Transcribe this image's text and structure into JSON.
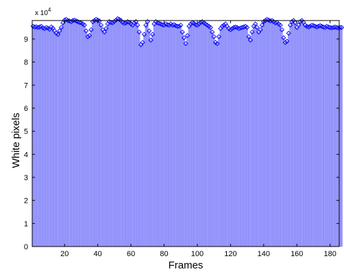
{
  "chart_data": {
    "type": "bar",
    "title": "",
    "xlabel": "Frames",
    "ylabel": "White pixels",
    "y_exponent_label": "x 10",
    "y_exponent_power": "4",
    "xlim": [
      1,
      185
    ],
    "ylim": [
      0,
      9.8
    ],
    "xticks": [
      20,
      40,
      60,
      80,
      100,
      120,
      140,
      160,
      180
    ],
    "yticks": [
      0,
      1,
      2,
      3,
      4,
      5,
      6,
      7,
      8,
      9
    ],
    "grid": false,
    "legend": "none",
    "bar_color": "#9999ff",
    "bar_edge_color": "#6666ee",
    "marker_color": "#0000ff",
    "marker": "diamond",
    "values": [
      9.55,
      9.52,
      9.53,
      9.5,
      9.52,
      9.55,
      9.48,
      9.45,
      9.5,
      9.47,
      9.42,
      9.52,
      9.47,
      9.35,
      9.25,
      9.2,
      9.35,
      9.5,
      9.7,
      9.82,
      9.85,
      9.8,
      9.78,
      9.75,
      9.8,
      9.82,
      9.78,
      9.75,
      9.72,
      9.7,
      9.65,
      9.6,
      9.35,
      9.1,
      9.15,
      9.4,
      9.75,
      9.8,
      9.85,
      9.82,
      9.78,
      9.6,
      9.4,
      9.3,
      9.45,
      9.65,
      9.75,
      9.72,
      9.7,
      9.76,
      9.82,
      9.88,
      9.85,
      9.8,
      9.72,
      9.68,
      9.7,
      9.75,
      9.72,
      9.65,
      9.6,
      9.7,
      9.75,
      9.6,
      9.3,
      8.75,
      8.85,
      9.2,
      9.6,
      9.75,
      9.35,
      8.95,
      9.2,
      9.65,
      9.75,
      9.7,
      9.68,
      9.65,
      9.62,
      9.6,
      9.65,
      9.62,
      9.6,
      9.65,
      9.6,
      9.62,
      9.58,
      9.55,
      9.55,
      9.6,
      9.3,
      9.05,
      8.8,
      9.15,
      9.55,
      9.65,
      9.7,
      9.68,
      9.62,
      9.6,
      9.65,
      9.72,
      9.75,
      9.7,
      9.65,
      9.6,
      9.55,
      9.5,
      9.3,
      9.1,
      8.85,
      8.8,
      9.1,
      9.45,
      9.55,
      9.6,
      9.65,
      9.55,
      9.45,
      9.4,
      9.45,
      9.5,
      9.52,
      9.5,
      9.45,
      9.48,
      9.5,
      9.52,
      9.55,
      9.5,
      9.1,
      8.95,
      9.3,
      9.55,
      9.65,
      9.5,
      9.3,
      9.4,
      9.6,
      9.75,
      9.8,
      9.85,
      9.82,
      9.78,
      9.8,
      9.75,
      9.7,
      9.72,
      9.65,
      9.6,
      9.4,
      9.05,
      8.85,
      8.9,
      9.25,
      9.6,
      9.75,
      9.8,
      9.7,
      9.5,
      9.6,
      9.75,
      9.8,
      9.72,
      9.6,
      9.55,
      9.52,
      9.55,
      9.6,
      9.58,
      9.55,
      9.52,
      9.55,
      9.58,
      9.55,
      9.52,
      9.5,
      9.55,
      9.52,
      9.5,
      9.48,
      9.5,
      9.52,
      9.5,
      9.48,
      9.5,
      9.5
    ]
  }
}
